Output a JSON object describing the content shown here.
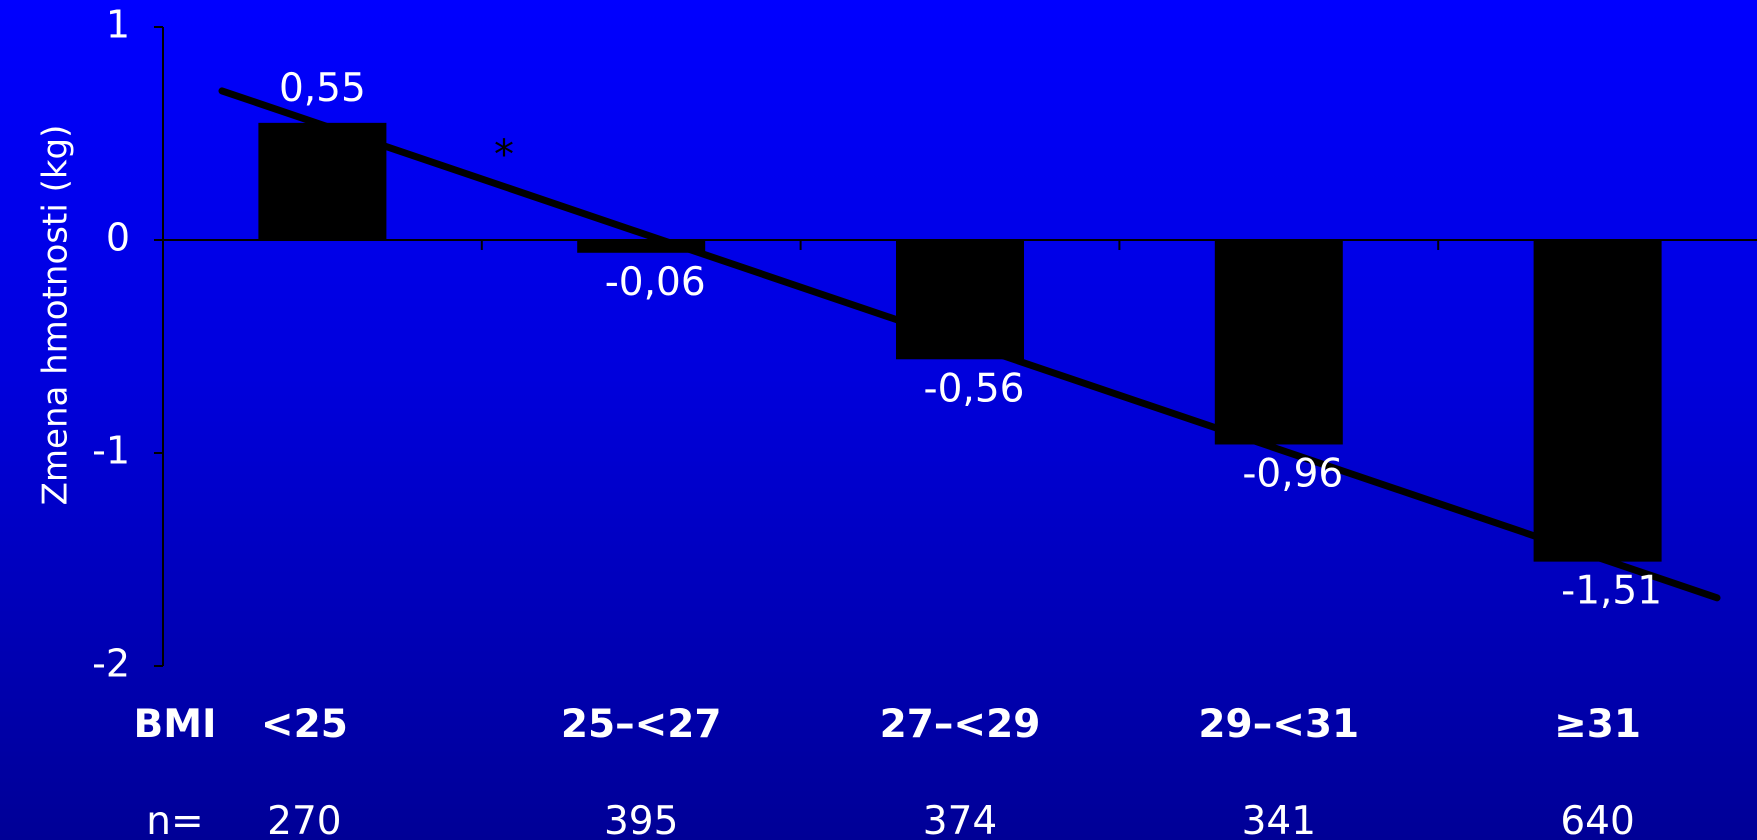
{
  "chart_data": {
    "type": "bar",
    "ylabel": "Zmena hmotnosti (kg)",
    "ylim": [
      -2,
      1
    ],
    "yticks": [
      1,
      0,
      -1,
      -2
    ],
    "category_prefix": "BMI",
    "categories": [
      "<25",
      "25–<27",
      "27–<29",
      "29–<31",
      "≥31"
    ],
    "values": [
      0.55,
      -0.06,
      -0.56,
      -0.96,
      -1.51
    ],
    "value_labels": [
      "0,55",
      "-0,06",
      "-0,56",
      "-0,96",
      "-1,51"
    ],
    "n_prefix": "n=",
    "n_values": [
      "270",
      "395",
      "374",
      "341",
      "640"
    ],
    "trendline": {
      "start": 0.7,
      "end": -1.68
    },
    "annotation": "*",
    "colors": {
      "bar": "#000000",
      "text": "#ffffff",
      "axis": "#000000"
    }
  }
}
